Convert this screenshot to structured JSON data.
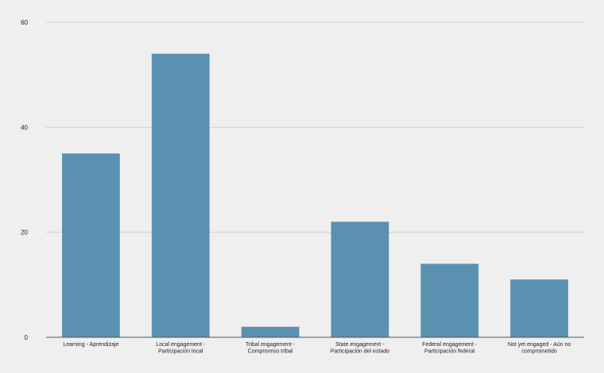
{
  "chart_data": {
    "type": "bar",
    "title": "",
    "xlabel": "",
    "ylabel": "",
    "categories": [
      [
        "Learning - Aprendizaje"
      ],
      [
        "Local engagement -",
        "Participación local"
      ],
      [
        "Tribal engagement -",
        "Compromiso tribal"
      ],
      [
        "State engagement -",
        "Participación del estado"
      ],
      [
        "Federal engagement -",
        "Participación federal"
      ],
      [
        "Not yet engaged - Aún no",
        "comprometido"
      ]
    ],
    "values": [
      35,
      54,
      2,
      22,
      14,
      11
    ],
    "ylim": [
      0,
      60
    ],
    "yticks": [
      0,
      20,
      40,
      60
    ],
    "grid": true,
    "legend": "none",
    "bar_color": "#5a91b0"
  }
}
